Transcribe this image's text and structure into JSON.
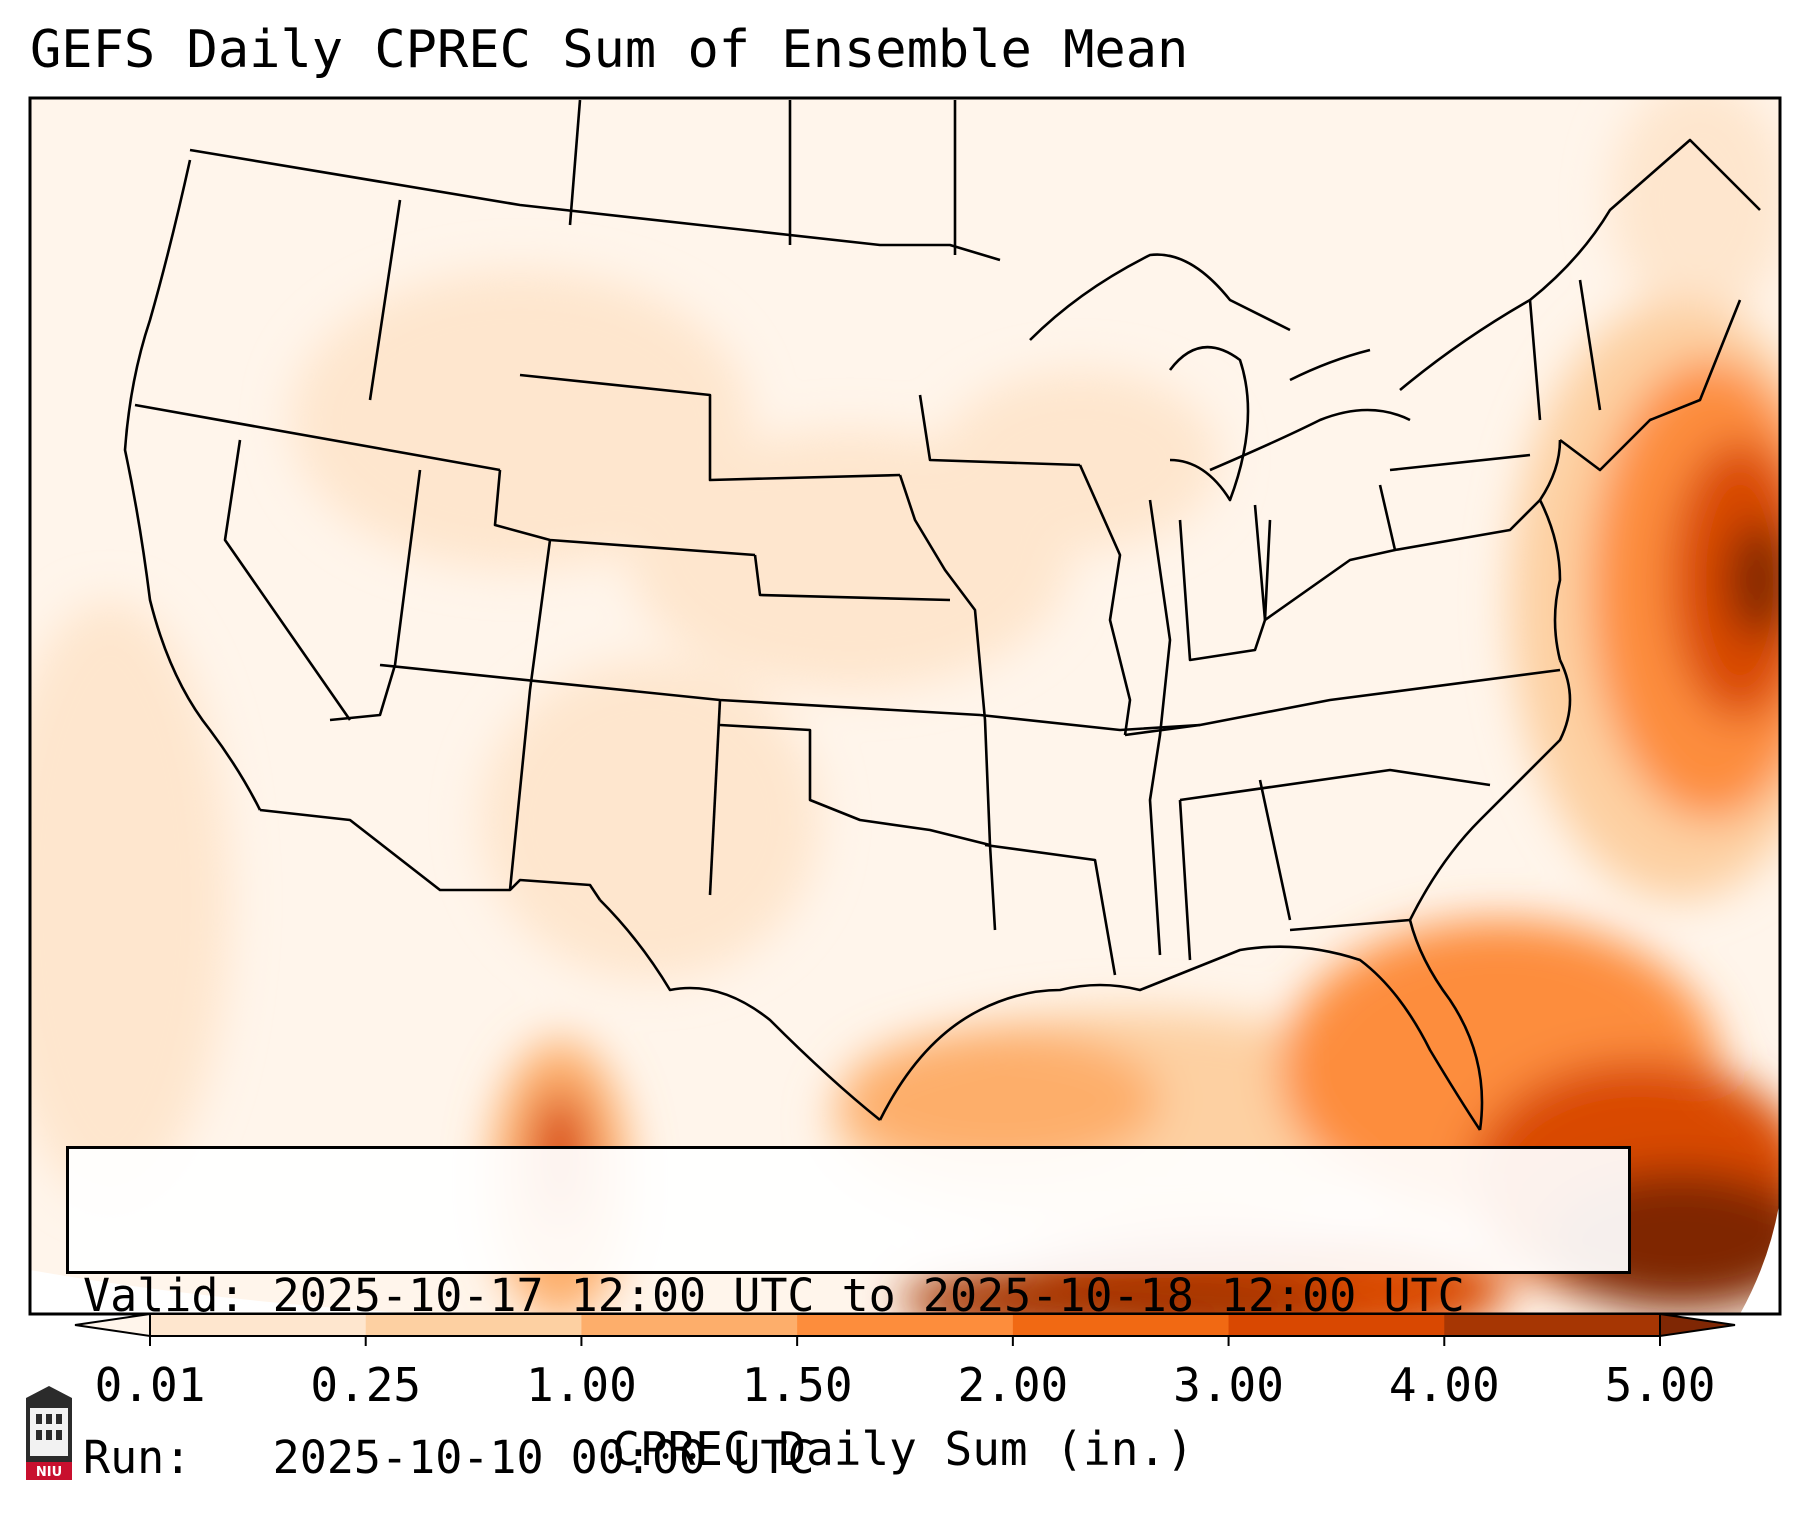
{
  "title": "GEFS Daily CPREC Sum of Ensemble Mean",
  "info": {
    "valid_label": "Valid:",
    "valid_value": "2025-10-17 12:00 UTC to 2025-10-18 12:00 UTC",
    "run_label": "Run:",
    "run_value": "2025-10-10 00:00 UTC"
  },
  "colorbar": {
    "label": "CPREC Daily Sum (in.)",
    "ticks": [
      "0.01",
      "0.25",
      "1.00",
      "1.50",
      "2.00",
      "3.00",
      "4.00",
      "5.00"
    ],
    "colors": [
      "#fff5eb",
      "#fee6ce",
      "#fdd0a2",
      "#fdae6b",
      "#fd8d3c",
      "#f16913",
      "#d94801",
      "#a63603",
      "#7f2704"
    ]
  },
  "map": {
    "region": "CONUS",
    "field": "CPREC ensemble mean daily sum",
    "background_color": "#fff5eb"
  },
  "logo": {
    "text": "NIU",
    "icon": "university-tower-icon"
  }
}
